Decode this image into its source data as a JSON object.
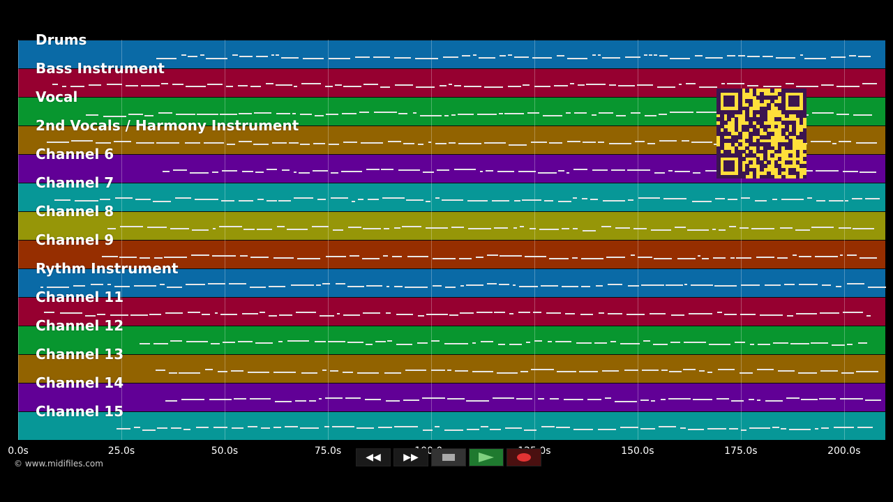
{
  "lanes": [
    {
      "label": "Drums",
      "color": "#0a6aa6"
    },
    {
      "label": "Bass Instrument",
      "color": "#960030"
    },
    {
      "label": "Vocal",
      "color": "#08962f"
    },
    {
      "label": "2nd Vocals / Harmony Instrument",
      "color": "#926300"
    },
    {
      "label": "Channel 6",
      "color": "#610096"
    },
    {
      "label": "Channel 7",
      "color": "#079797"
    },
    {
      "label": "Channel 8",
      "color": "#969608"
    },
    {
      "label": "Channel 9",
      "color": "#962e00"
    },
    {
      "label": "Rythm Instrument",
      "color": "#0a6aa6"
    },
    {
      "label": "Channel 11",
      "color": "#960030"
    },
    {
      "label": "Channel 12",
      "color": "#08962f"
    },
    {
      "label": "Channel 13",
      "color": "#926300"
    },
    {
      "label": "Channel 14",
      "color": "#610096"
    },
    {
      "label": "Channel 15",
      "color": "#079797"
    }
  ],
  "axis": {
    "unit": "s",
    "ticks": [
      0,
      25,
      50,
      75,
      100,
      125,
      150,
      175,
      200
    ],
    "tick_labels": [
      "0.0s",
      "25.0s",
      "50.0s",
      "75.0s",
      "100.0s",
      "125.0s",
      "150.0s",
      "175.0s",
      "200.0s"
    ],
    "range": [
      0,
      210
    ]
  },
  "copyright": "© www.midifiles.com",
  "transport": {
    "rewind": {
      "label": "◀◀",
      "icon": "rewind-icon"
    },
    "forward": {
      "label": "▶▶",
      "icon": "fast-forward-icon"
    },
    "stop": {
      "label": "■",
      "icon": "stop-icon"
    },
    "play": {
      "label": "▶",
      "icon": "play-icon",
      "color": "#1f7a2f"
    },
    "record": {
      "label": "●",
      "icon": "record-icon",
      "color": "#e23333"
    }
  },
  "qr_code": {
    "icon": "qr-code-icon",
    "color": "#ffdf3a"
  }
}
